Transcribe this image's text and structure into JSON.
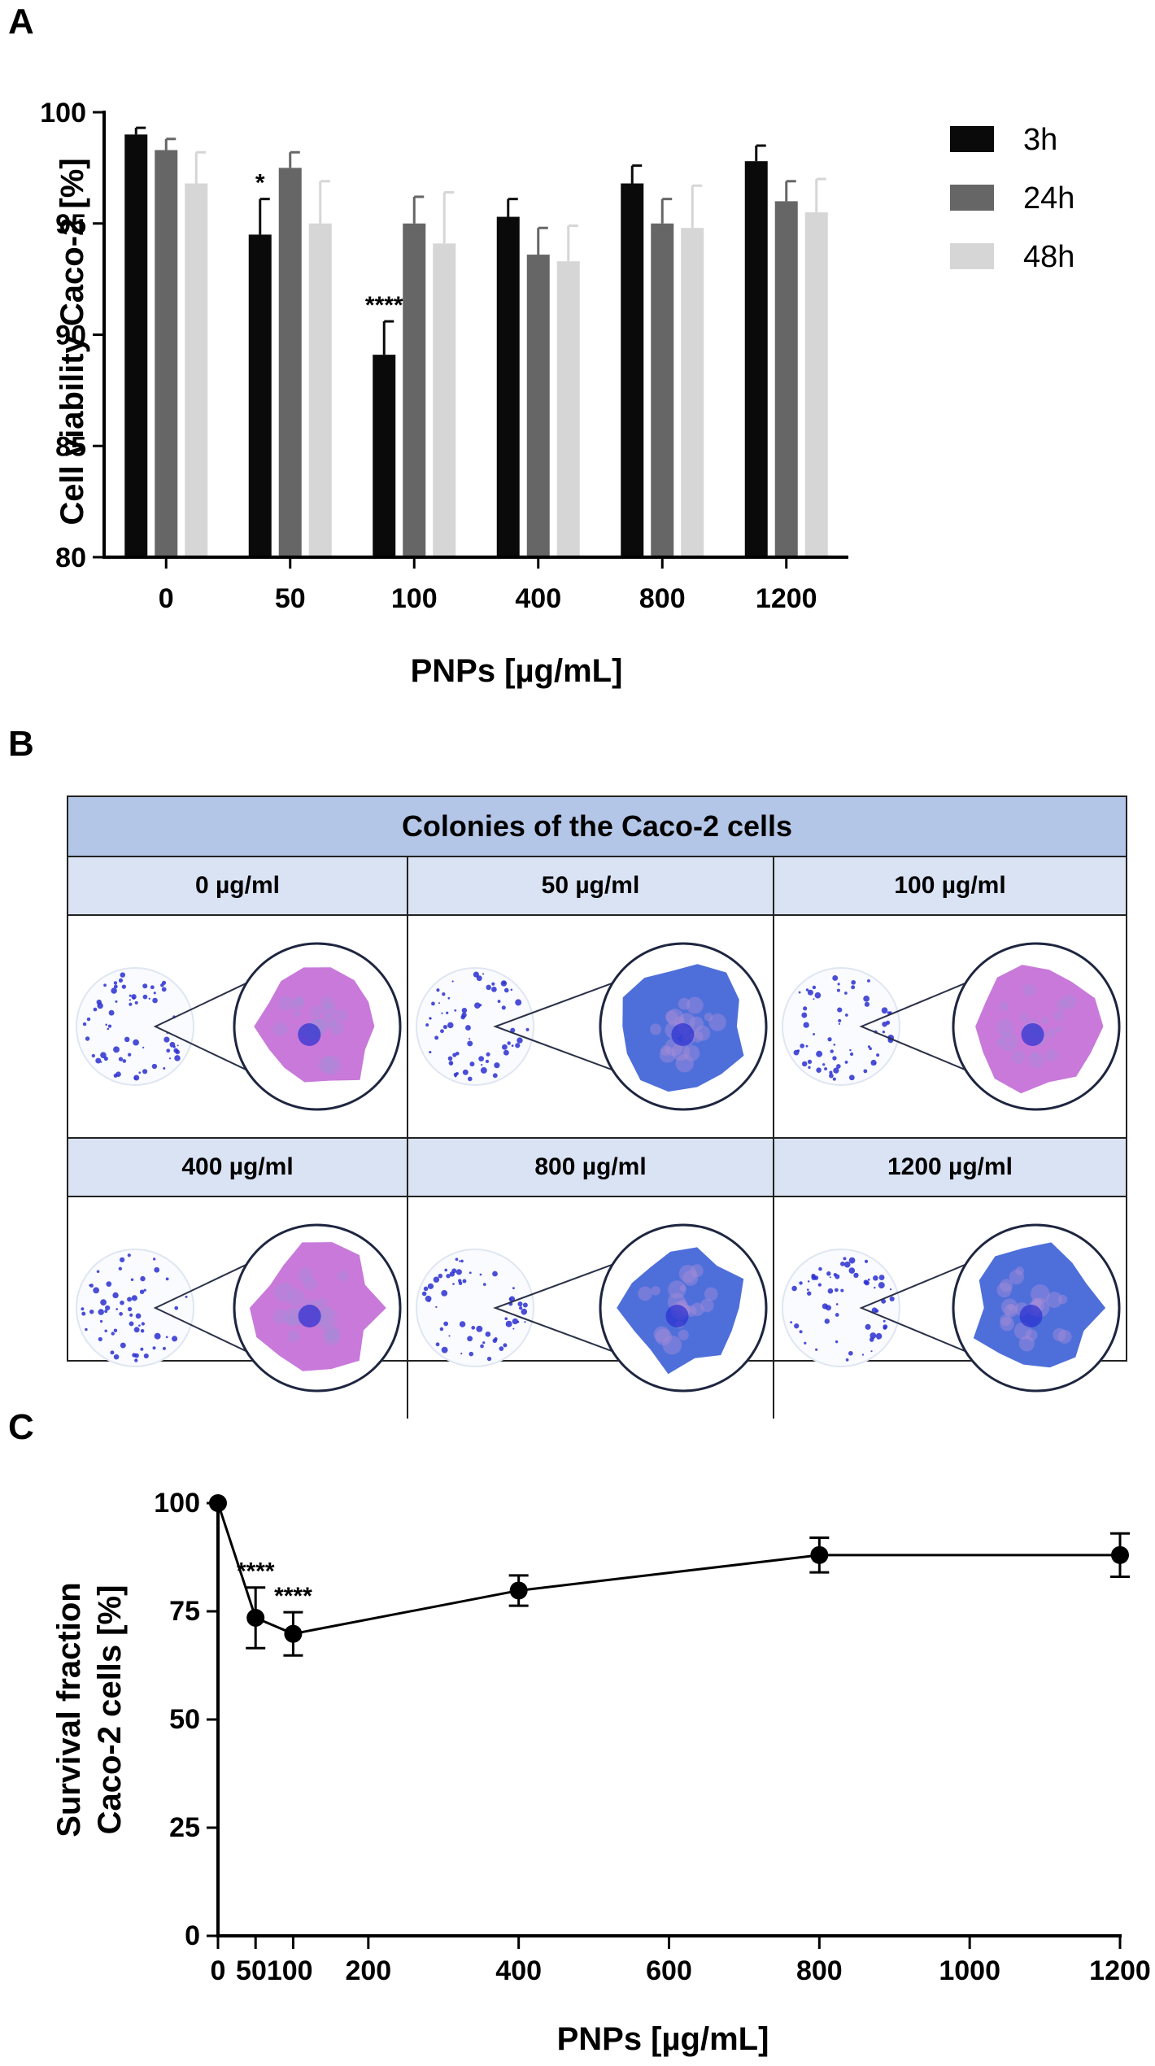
{
  "panels": {
    "a": "A",
    "b": "B",
    "c": "C"
  },
  "chart_data": [
    {
      "type": "bar",
      "title": "",
      "xlabel": "PNPs [µg/mL]",
      "ylabel": "Cell viability Caco-2 [%]",
      "ylim": [
        80,
        100
      ],
      "yticks": [
        80,
        85,
        90,
        95,
        100
      ],
      "categories": [
        "0",
        "50",
        "100",
        "400",
        "800",
        "1200"
      ],
      "series": [
        {
          "name": "3h",
          "color": "#0a0a0a",
          "values": [
            99.0,
            94.5,
            89.1,
            95.3,
            96.8,
            97.8
          ],
          "errors": [
            0.3,
            1.6,
            1.5,
            0.8,
            0.8,
            0.7
          ]
        },
        {
          "name": "24h",
          "color": "#666666",
          "values": [
            98.3,
            97.5,
            95.0,
            93.6,
            95.0,
            96.0
          ],
          "errors": [
            0.5,
            0.7,
            1.2,
            1.2,
            1.1,
            0.9
          ]
        },
        {
          "name": "48h",
          "color": "#d6d6d6",
          "values": [
            96.8,
            95.0,
            94.1,
            93.3,
            94.8,
            95.5
          ],
          "errors": [
            1.4,
            1.9,
            2.3,
            1.6,
            1.9,
            1.5
          ]
        }
      ],
      "annotations": [
        {
          "category": "50",
          "series": "3h",
          "text": "*"
        },
        {
          "category": "100",
          "series": "3h",
          "text": "****"
        }
      ],
      "legend": "right",
      "grid": false
    },
    {
      "type": "line",
      "title": "",
      "xlabel": "PNPs [µg/mL]",
      "ylabel_lines": [
        "Survival fraction",
        "Caco-2 cells [%]"
      ],
      "xlim": [
        0,
        1200
      ],
      "ylim": [
        0,
        100
      ],
      "xticks": [
        0,
        200,
        400,
        600,
        800,
        1000,
        1200
      ],
      "xtick_labels": [
        "0",
        "200",
        "400",
        "600",
        "800",
        "1000",
        "1200"
      ],
      "xtick_extra_label": "50100",
      "yticks": [
        0,
        25,
        50,
        75,
        100
      ],
      "series": [
        {
          "x": [
            0,
            50,
            100,
            400,
            800,
            1200
          ],
          "y": [
            100,
            73.5,
            69.8,
            79.8,
            88.0,
            88.0
          ],
          "errors": [
            0,
            7.0,
            5.0,
            3.5,
            4.0,
            5.0
          ]
        }
      ],
      "annotations": [
        {
          "x": 50,
          "text": "****"
        },
        {
          "x": 100,
          "text": "****"
        }
      ],
      "grid": false
    }
  ],
  "colony_table": {
    "header": "Colonies of the Caco-2 cells",
    "concentrations": [
      "0 µg/ml",
      "50 µg/ml",
      "100 µg/ml",
      "400 µg/ml",
      "800 µg/ml",
      "1200 µg/ml"
    ],
    "stain_colors": [
      "#2a2fd0",
      "#a78bd8",
      "#c26ad6",
      "#3b5fd6"
    ]
  }
}
